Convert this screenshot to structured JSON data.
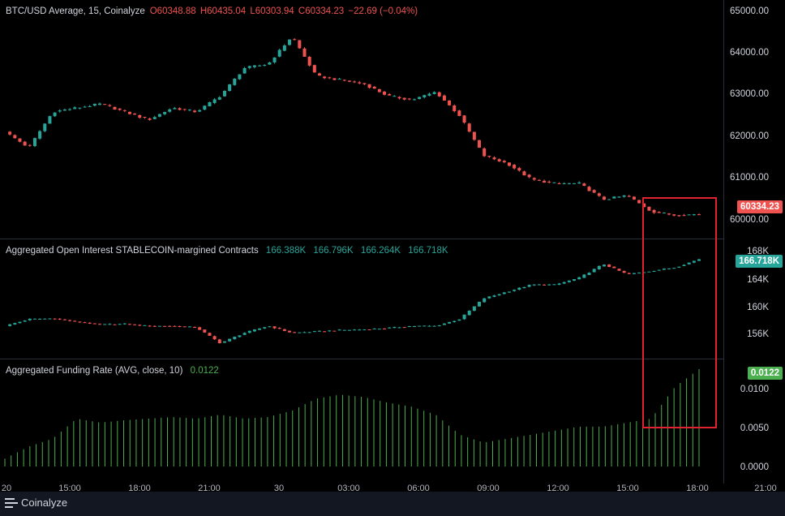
{
  "colors": {
    "up": "#26a69a",
    "down": "#ef5350",
    "funding": "#4caf50",
    "highlight": "#e0232e"
  },
  "price_legend": {
    "title": "BTC/USD Average, 15, Coinalyze",
    "open": "O60348.88",
    "high": "H60435.04",
    "low": "L60303.94",
    "close": "C60334.23",
    "change": "−22.69 (−0.04%)"
  },
  "oi_legend": {
    "title": "Aggregated Open Interest STABLECOIN-margined Contracts",
    "o": "166.388K",
    "h": "166.796K",
    "l": "166.264K",
    "c": "166.718K"
  },
  "fr_legend": {
    "title": "Aggregated Funding Rate (AVG, close, 10)",
    "value": "0.0122"
  },
  "price_axis": [
    "65000.00",
    "64000.00",
    "63000.00",
    "62000.00",
    "61000.00",
    "60000.00"
  ],
  "price_badge": "60334.23",
  "oi_axis": [
    "168K",
    "164K",
    "160K",
    "156K"
  ],
  "oi_badge": "166.718K",
  "fr_axis": [
    "0.0100",
    "0.0050",
    "0.0000"
  ],
  "fr_badge": "0.0122",
  "x_axis": [
    "20",
    "15:00",
    "18:00",
    "21:00",
    "30",
    "03:00",
    "06:00",
    "09:00",
    "12:00",
    "15:00",
    "18:00",
    "21:00"
  ],
  "brand": "Coinalyze",
  "chart_data": [
    {
      "type": "line",
      "title": "BTC/USD Average, 15, Coinalyze",
      "x": [
        "13:00",
        "14:00",
        "15:00",
        "16:00",
        "17:00",
        "18:00",
        "19:00",
        "20:00",
        "21:00",
        "22:00",
        "23:00",
        "00:00",
        "01:00",
        "02:00",
        "03:00",
        "04:00",
        "05:00",
        "06:00",
        "07:00",
        "08:00",
        "09:00",
        "10:00",
        "11:00",
        "12:00",
        "13:00",
        "14:00",
        "15:00",
        "16:00",
        "17:00",
        "18:00"
      ],
      "series": [
        {
          "values": [
            62400,
            62000,
            62900,
            63000,
            63100,
            62900,
            62700,
            63000,
            62900,
            63300,
            64000,
            64100,
            64800,
            63800,
            63700,
            63600,
            63300,
            63200,
            63400,
            62800,
            61800,
            61600,
            61200,
            61100,
            61100,
            60700,
            60800,
            60400,
            60300,
            60334
          ]
        }
      ],
      "ylim": [
        59800,
        65300
      ]
    },
    {
      "type": "line",
      "title": "Aggregated Open Interest STABLECOIN-margined Contracts",
      "series": [
        {
          "values": [
            157000,
            158000,
            158100,
            157600,
            157200,
            157300,
            157000,
            157000,
            156800,
            154500,
            156000,
            157000,
            156000,
            156200,
            156400,
            156500,
            156700,
            157000,
            157000,
            158000,
            161000,
            162000,
            163000,
            163000,
            164000,
            166000,
            164500,
            165000,
            165500,
            166718
          ]
        }
      ],
      "ylim": [
        152500,
        169000
      ]
    },
    {
      "type": "bar",
      "title": "Aggregated Funding Rate (AVG, close, 10)",
      "series": [
        {
          "values": [
            0.001,
            0.0025,
            0.0035,
            0.006,
            0.0055,
            0.0058,
            0.006,
            0.0062,
            0.006,
            0.0065,
            0.006,
            0.0062,
            0.007,
            0.0085,
            0.009,
            0.0087,
            0.008,
            0.0075,
            0.0065,
            0.004,
            0.003,
            0.0035,
            0.004,
            0.0045,
            0.005,
            0.005,
            0.0055,
            0.006,
            0.01,
            0.0122
          ]
        }
      ],
      "ylim": [
        -0.0003,
        0.0125
      ]
    }
  ]
}
